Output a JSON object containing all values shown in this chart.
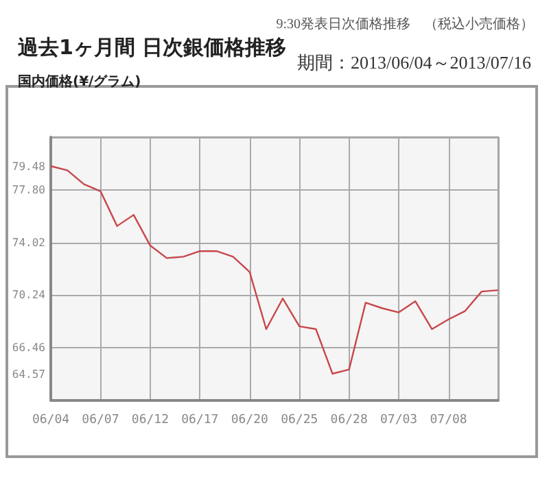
{
  "chart_data": {
    "type": "line",
    "title": "過去1ヶ月間 日次銀価格推移",
    "subtitle": "9:30発表日次価格推移　（税込小売価格）",
    "annotations": [
      "期間：2013/06/04～2013/07/16"
    ],
    "ylabel": "国内価格(¥/グラム)",
    "categories": [
      "06/04",
      null,
      null,
      "06/07",
      null,
      null,
      "06/12",
      null,
      null,
      "06/17",
      null,
      null,
      "06/20",
      null,
      null,
      "06/25",
      null,
      null,
      "06/28",
      null,
      null,
      "07/03",
      null,
      null,
      "07/08",
      null,
      null,
      null
    ],
    "series": [
      {
        "color": "#c8474b",
        "values": [
          79.5,
          79.2,
          78.2,
          77.7,
          75.2,
          76.0,
          73.8,
          72.9,
          73.0,
          73.4,
          73.4,
          73.0,
          71.9,
          67.8,
          70.0,
          68.0,
          67.8,
          64.6,
          64.9,
          69.7,
          69.3,
          69.0,
          69.8,
          67.8,
          68.5,
          69.1,
          70.5,
          70.6
        ]
      }
    ],
    "ylim": [
      62.68,
      81.58
    ],
    "yticks": [
      79.48,
      {
        "value": 77.8,
        "label": "77.80"
      },
      74.02,
      70.24,
      66.46,
      64.57
    ],
    "grid": true,
    "marker": "none",
    "line_style": "solid"
  }
}
